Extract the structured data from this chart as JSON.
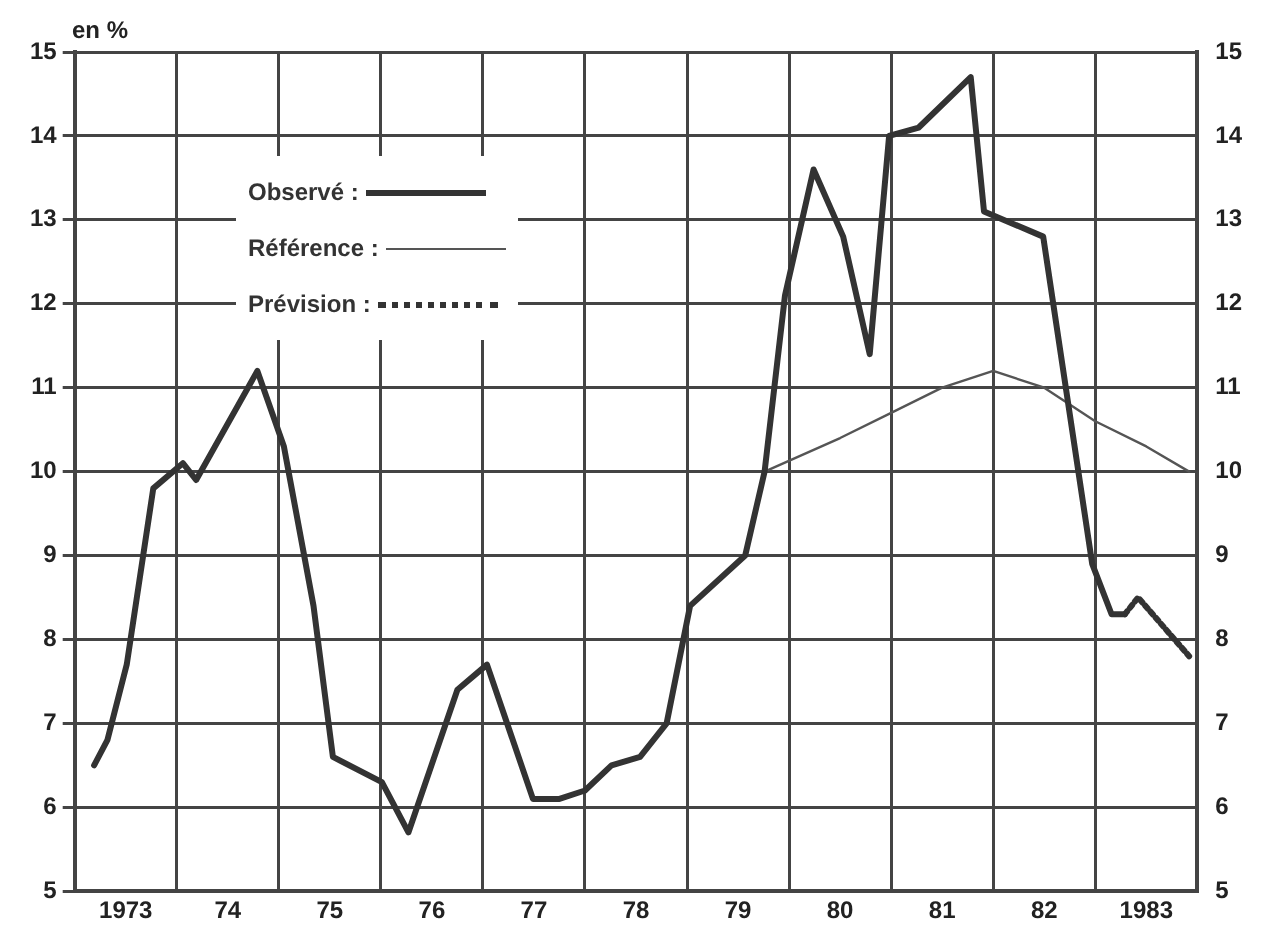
{
  "chart_data": {
    "type": "line",
    "ylabel": "en %",
    "xlim": [
      1972.5,
      1983.5
    ],
    "xticks": [
      {
        "value": 1972.5,
        "label": null
      },
      1973,
      {
        "value": 1973.5,
        "label": null
      },
      {
        "value": 1974,
        "label": "74"
      },
      {
        "value": 1974.5,
        "label": null
      },
      {
        "value": 1975,
        "label": "75"
      },
      {
        "value": 1975.5,
        "label": null
      },
      {
        "value": 1976,
        "label": "76"
      },
      {
        "value": 1976.5,
        "label": null
      },
      {
        "value": 1977,
        "label": "77"
      },
      {
        "value": 1977.5,
        "label": null
      },
      {
        "value": 1978,
        "label": "78"
      },
      {
        "value": 1978.5,
        "label": null
      },
      {
        "value": 1979,
        "label": "79"
      },
      {
        "value": 1979.5,
        "label": null
      },
      {
        "value": 1980,
        "label": "80"
      },
      {
        "value": 1980.5,
        "label": null
      },
      {
        "value": 1981,
        "label": "81"
      },
      {
        "value": 1981.5,
        "label": null
      },
      {
        "value": 1982,
        "label": "82"
      },
      {
        "value": 1982.5,
        "label": null
      },
      1983,
      {
        "value": 1983.5,
        "label": null
      }
    ],
    "ylim": [
      5,
      15
    ],
    "yticks": [
      5,
      6,
      7,
      8,
      9,
      10,
      11,
      12,
      13,
      14,
      15
    ],
    "y2lim": [
      5,
      15
    ],
    "y2ticks": [
      5,
      6,
      7,
      8,
      9,
      10,
      11,
      12,
      13,
      14,
      15
    ],
    "grid": true,
    "legend": "top left",
    "marker": "none",
    "series": [
      {
        "name": "Observé :",
        "color": "#333333",
        "line_style": "solid",
        "x": [
          1972.69,
          1972.82,
          1973.01,
          1973.27,
          1973.56,
          1973.69,
          1974.29,
          1974.55,
          1974.84,
          1975.03,
          1975.51,
          1975.77,
          1976.25,
          1976.54,
          1976.99,
          1977.25,
          1977.5,
          1977.76,
          1978.04,
          1978.3,
          1978.53,
          1979.07,
          1979.26,
          1979.46,
          1979.74,
          1980.03,
          1980.29,
          1980.48,
          1980.77,
          1981.28,
          1981.41,
          1981.99,
          1982.47,
          1982.66,
          1982.79
        ],
        "values": [
          6.5,
          6.8,
          7.7,
          9.8,
          10.1,
          9.9,
          11.2,
          10.3,
          8.4,
          6.6,
          6.3,
          5.7,
          7.4,
          7.7,
          6.1,
          6.1,
          6.2,
          6.5,
          6.6,
          7.0,
          8.4,
          9.0,
          10.0,
          12.1,
          13.6,
          12.8,
          11.4,
          14.0,
          14.1,
          14.7,
          13.1,
          12.8,
          8.9,
          8.3,
          8.3
        ]
      },
      {
        "name": "Référence :",
        "color": "#555555",
        "line_style": "solid",
        "x": [
          1979.26,
          1980.0,
          1980.5,
          1981.0,
          1981.5,
          1982.0,
          1982.5,
          1983.0,
          1983.42
        ],
        "values": [
          10.0,
          10.4,
          10.7,
          11.0,
          11.2,
          11.0,
          10.6,
          10.3,
          10.0
        ]
      },
      {
        "name": "Prévision :",
        "color": "#333333",
        "line_style": "dotted",
        "x": [
          1982.79,
          1982.92,
          1983.42
        ],
        "values": [
          8.3,
          8.5,
          7.8
        ]
      }
    ]
  }
}
